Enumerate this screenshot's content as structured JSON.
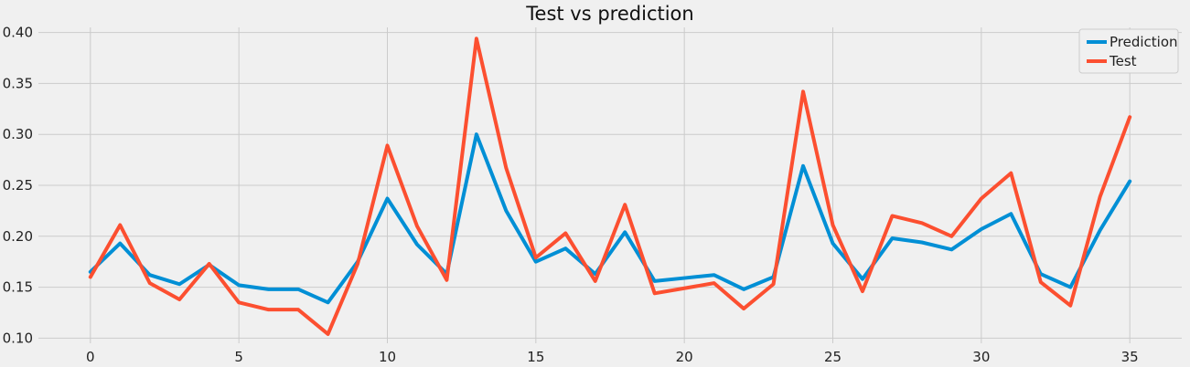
{
  "chart_data": {
    "type": "line",
    "title": "Test  vs prediction",
    "xlabel": "",
    "ylabel": "",
    "xlim": [
      -1.75,
      36.75
    ],
    "ylim": [
      0.095,
      0.405
    ],
    "x_ticks": [
      0,
      5,
      10,
      15,
      20,
      25,
      30,
      35
    ],
    "y_ticks": [
      0.1,
      0.15,
      0.2,
      0.25,
      0.3,
      0.35,
      0.4
    ],
    "y_tick_labels": [
      "0.10",
      "0.15",
      "0.20",
      "0.25",
      "0.30",
      "0.35",
      "0.40"
    ],
    "grid": true,
    "legend_placement": "top-right",
    "x": [
      0,
      1,
      2,
      3,
      4,
      5,
      6,
      7,
      8,
      9,
      10,
      11,
      12,
      13,
      14,
      15,
      16,
      17,
      18,
      19,
      20,
      21,
      22,
      23,
      24,
      25,
      26,
      27,
      28,
      29,
      30,
      31,
      32,
      33,
      34,
      35
    ],
    "series": [
      {
        "name": "Prediction",
        "color": "#008fd5",
        "values": [
          0.165,
          0.193,
          0.162,
          0.153,
          0.172,
          0.152,
          0.148,
          0.148,
          0.135,
          0.175,
          0.237,
          0.192,
          0.163,
          0.3,
          0.225,
          0.175,
          0.188,
          0.163,
          0.204,
          0.156,
          0.159,
          0.162,
          0.148,
          0.16,
          0.269,
          0.193,
          0.158,
          0.198,
          0.194,
          0.187,
          0.207,
          0.222,
          0.163,
          0.15,
          0.206,
          0.254
        ]
      },
      {
        "name": "Test",
        "color": "#fc4f30",
        "values": [
          0.16,
          0.211,
          0.154,
          0.138,
          0.173,
          0.135,
          0.128,
          0.128,
          0.104,
          0.173,
          0.289,
          0.21,
          0.157,
          0.394,
          0.267,
          0.179,
          0.203,
          0.156,
          0.231,
          0.144,
          0.149,
          0.154,
          0.129,
          0.153,
          0.342,
          0.211,
          0.146,
          0.22,
          0.213,
          0.2,
          0.237,
          0.262,
          0.155,
          0.132,
          0.239,
          0.317
        ]
      }
    ]
  }
}
